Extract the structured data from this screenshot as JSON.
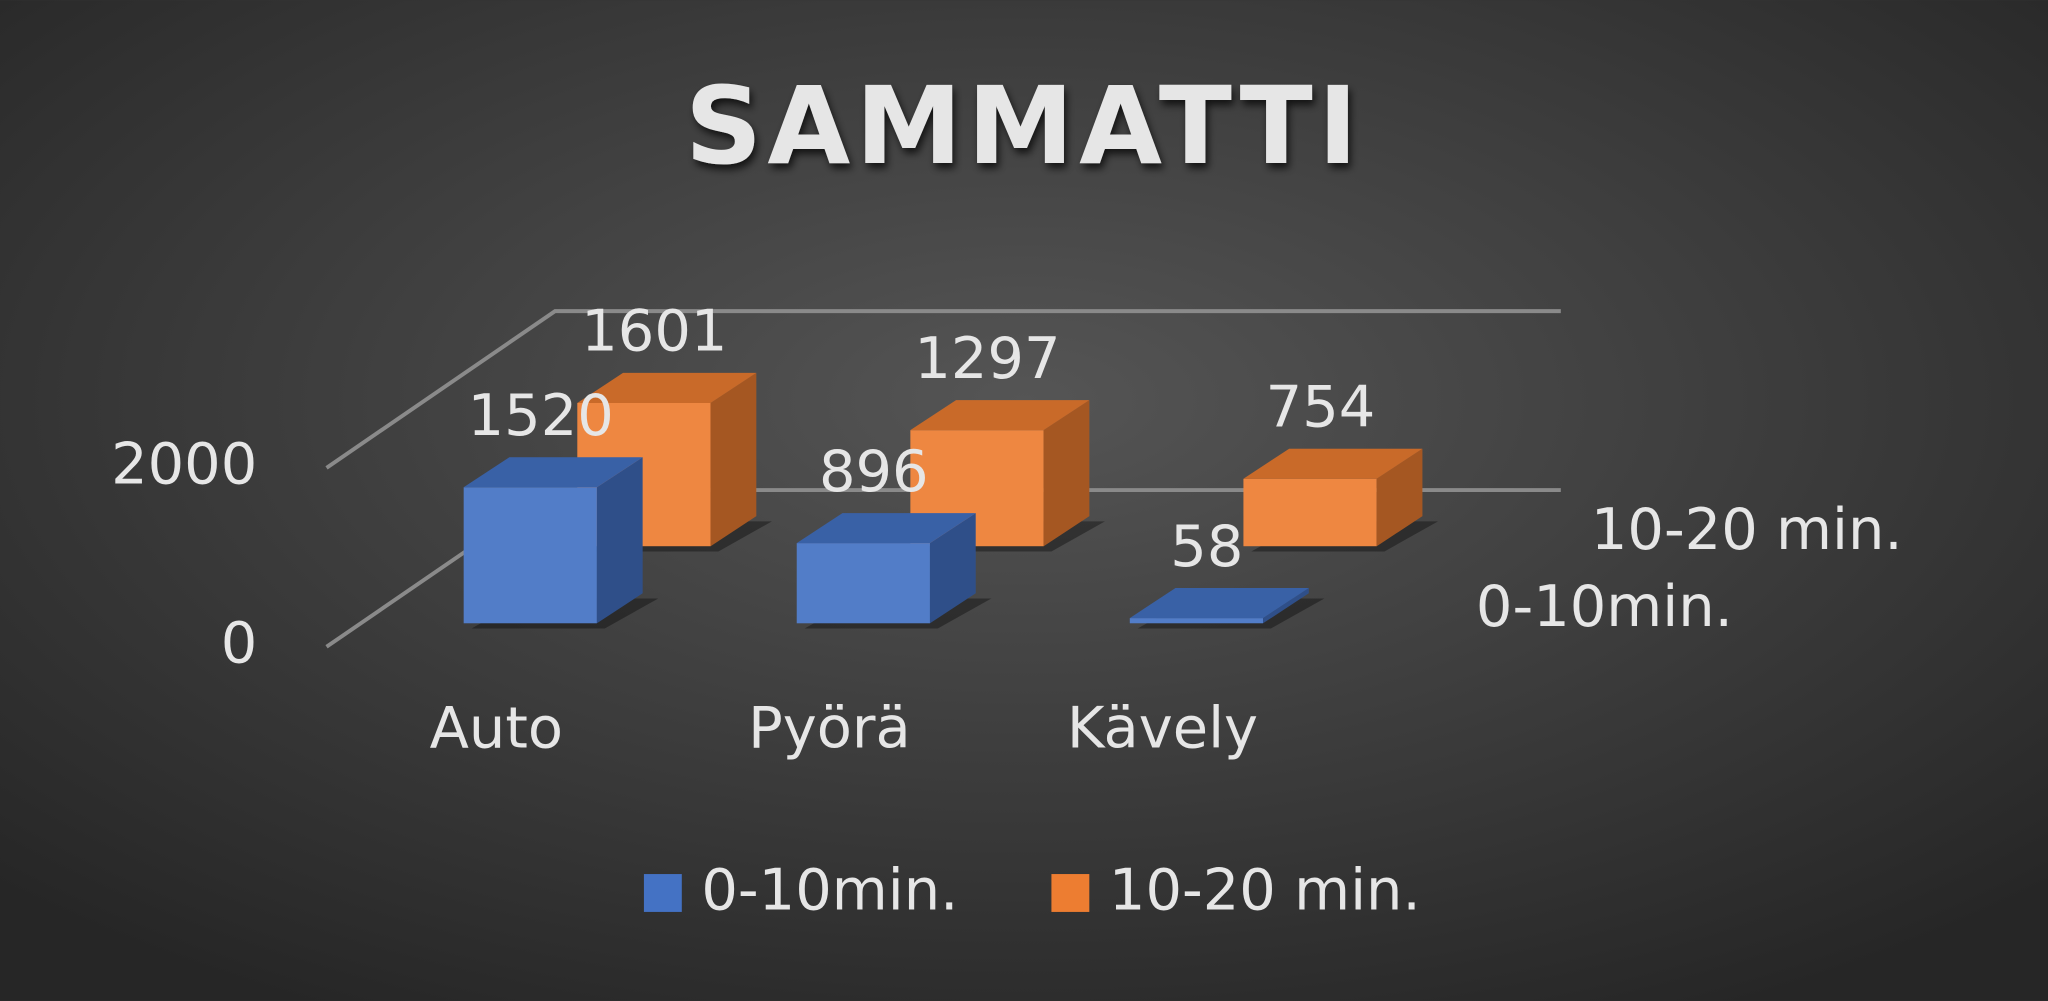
{
  "chart_data": {
    "type": "bar3d",
    "title": "SAMMATTI",
    "categories": [
      "Auto",
      "Pyörä",
      "Kävely"
    ],
    "series": [
      {
        "name": "0-10min.",
        "color": "#4472c4",
        "values": [
          1520,
          896,
          58
        ]
      },
      {
        "name": "10-20 min.",
        "color": "#ed7d31",
        "values": [
          1601,
          1297,
          754
        ]
      }
    ],
    "ylim": [
      0,
      2000
    ],
    "yticks": [
      0,
      2000
    ],
    "grid": true,
    "legend": "bottom"
  }
}
